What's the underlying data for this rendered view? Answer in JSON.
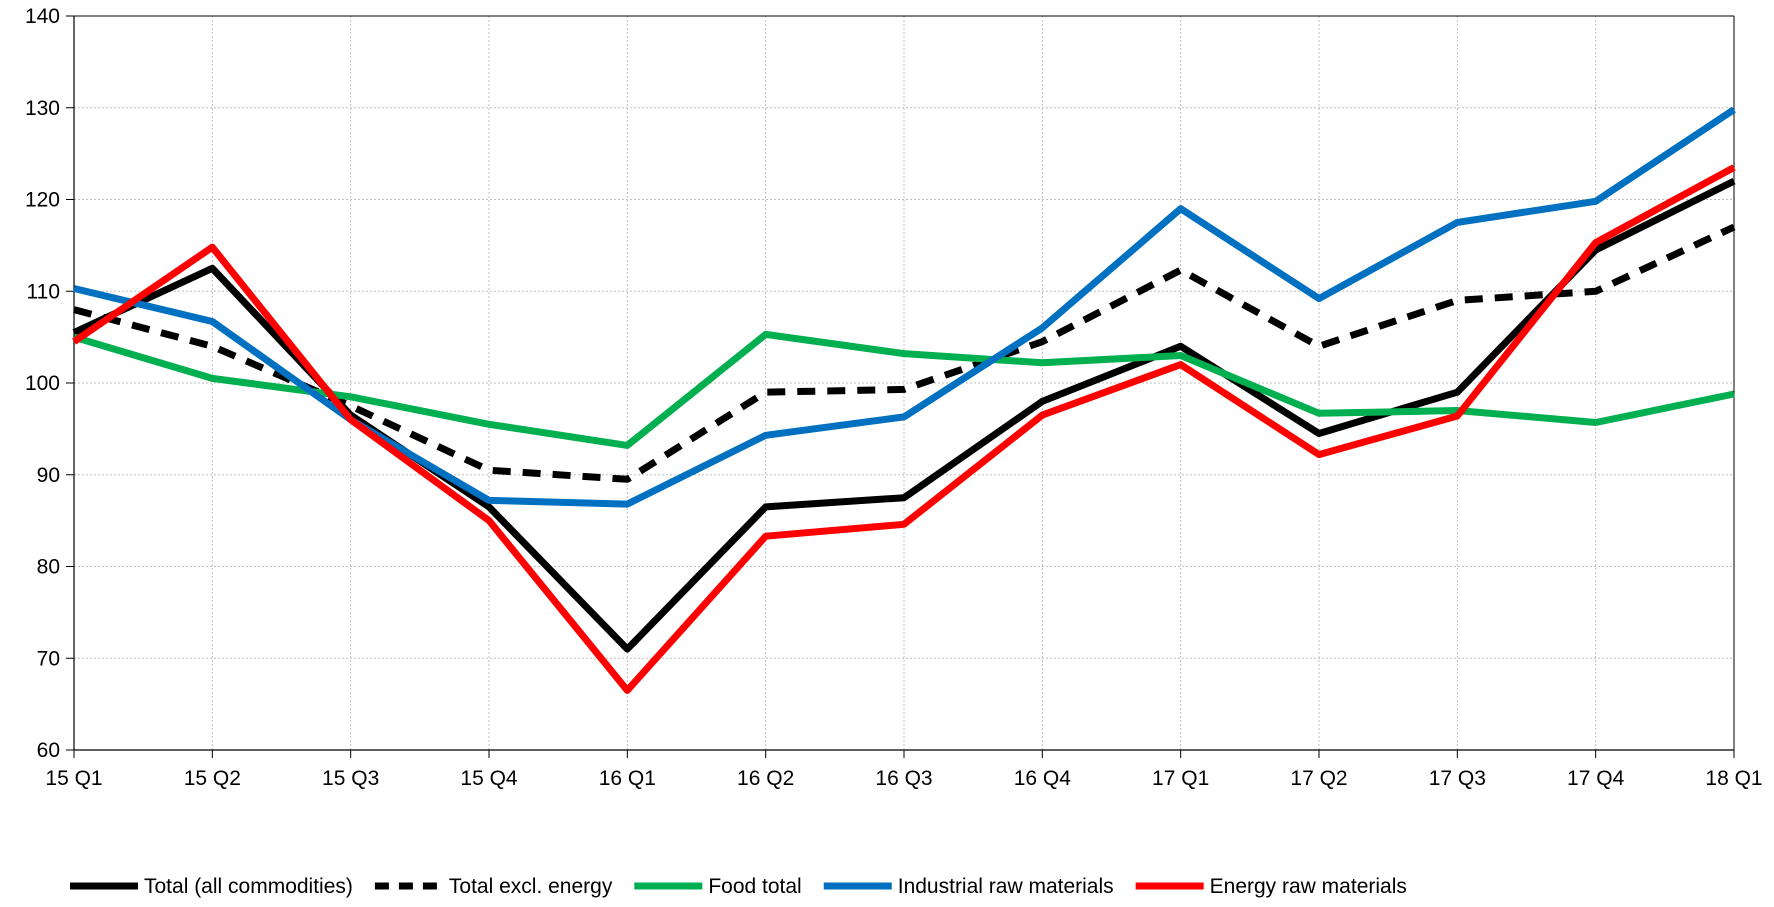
{
  "chart_data": {
    "type": "line",
    "title": "",
    "xlabel": "",
    "ylabel": "",
    "ylim": [
      60,
      140
    ],
    "y_ticks": [
      60,
      70,
      80,
      90,
      100,
      110,
      120,
      130,
      140
    ],
    "grid": true,
    "legend_position": "bottom",
    "categories": [
      "15 Q1",
      "15 Q2",
      "15 Q3",
      "15 Q4",
      "16 Q1",
      "16 Q2",
      "16 Q3",
      "16 Q4",
      "17 Q1",
      "17 Q2",
      "17 Q3",
      "17 Q4",
      "18 Q1"
    ],
    "series": [
      {
        "name": "Total (all commodities)",
        "color": "#000000",
        "dashed": false,
        "values": [
          105.5,
          112.5,
          96.5,
          86.5,
          71.0,
          86.5,
          87.5,
          98.0,
          104.0,
          94.5,
          99.0,
          114.5,
          122.0
        ]
      },
      {
        "name": "Total excl. energy",
        "color": "#000000",
        "dashed": true,
        "values": [
          108.0,
          104.0,
          97.5,
          90.5,
          89.5,
          99.0,
          99.3,
          104.5,
          112.3,
          104.0,
          109.0,
          110.0,
          117.0
        ]
      },
      {
        "name": "Food total",
        "color": "#00b050",
        "dashed": false,
        "values": [
          105.0,
          100.5,
          98.5,
          95.5,
          93.2,
          105.3,
          103.2,
          102.2,
          103.0,
          96.7,
          97.0,
          95.7,
          98.8
        ]
      },
      {
        "name": "Industrial raw materials",
        "color": "#0070c0",
        "dashed": false,
        "values": [
          110.3,
          106.7,
          96.0,
          87.2,
          86.8,
          94.3,
          96.3,
          106.0,
          119.0,
          109.2,
          117.5,
          119.8,
          129.8
        ]
      },
      {
        "name": "Energy raw materials",
        "color": "#ff0000",
        "dashed": false,
        "values": [
          104.5,
          114.8,
          96.0,
          85.0,
          66.5,
          83.3,
          84.6,
          96.5,
          102.0,
          92.2,
          96.4,
          115.3,
          123.5
        ]
      }
    ]
  }
}
